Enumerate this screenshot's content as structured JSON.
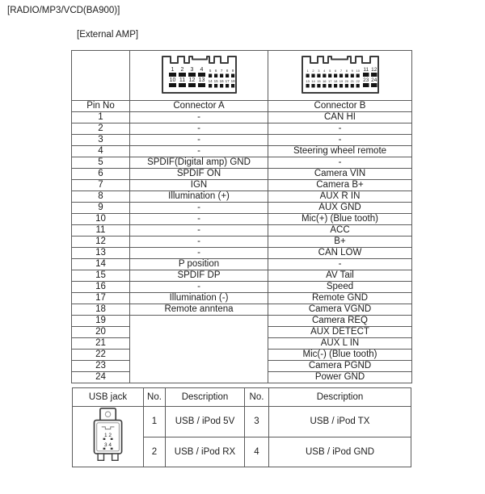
{
  "page_title": "[RADIO/MP3/VCD(BA900)]",
  "section_label": "[External AMP]",
  "colors": {
    "text": "#1c1c1c",
    "border": "#5c5c5c",
    "pin_fill": "#151515",
    "background": "#ffffff"
  },
  "connector_a": {
    "top_pins_large": [
      "1",
      "2",
      "3",
      "4"
    ],
    "top_pins_small": [
      "5",
      "6",
      "7",
      "8",
      "9"
    ],
    "bottom_pins_large": [
      "10",
      "11",
      "12",
      "13"
    ],
    "bottom_pins_small": [
      "14",
      "15",
      "16",
      "17",
      "18"
    ]
  },
  "connector_b": {
    "top_pins_small": [
      "1",
      "2",
      "3",
      "4",
      "5",
      "6",
      "7",
      "8",
      "9",
      "10"
    ],
    "top_pins_large": [
      "11",
      "12"
    ],
    "bottom_pins_small": [
      "13",
      "14",
      "15",
      "16",
      "17",
      "18",
      "19",
      "20",
      "21",
      "22"
    ],
    "bottom_pins_large": [
      "23",
      "24"
    ]
  },
  "pin_table": {
    "headers": [
      "Pin No",
      "Connector A",
      "Connector B"
    ],
    "rows": [
      {
        "pin": "1",
        "a": "-",
        "b": "CAN HI"
      },
      {
        "pin": "2",
        "a": "-",
        "b": "-"
      },
      {
        "pin": "3",
        "a": "-",
        "b": "-"
      },
      {
        "pin": "4",
        "a": "-",
        "b": "Steering wheel remote"
      },
      {
        "pin": "5",
        "a": "SPDIF(Digital amp) GND",
        "b": "-"
      },
      {
        "pin": "6",
        "a": "SPDIF ON",
        "b": "Camera VIN"
      },
      {
        "pin": "7",
        "a": "IGN",
        "b": "Camera B+"
      },
      {
        "pin": "8",
        "a": "Illumination (+)",
        "b": "AUX R IN"
      },
      {
        "pin": "9",
        "a": "-",
        "b": "AUX GND"
      },
      {
        "pin": "10",
        "a": "-",
        "b": "Mic(+) (Blue tooth)"
      },
      {
        "pin": "11",
        "a": "-",
        "b": "ACC"
      },
      {
        "pin": "12",
        "a": "-",
        "b": "B+"
      },
      {
        "pin": "13",
        "a": "-",
        "b": "CAN LOW"
      },
      {
        "pin": "14",
        "a": "P position",
        "b": "-"
      },
      {
        "pin": "15",
        "a": "SPDIF DP",
        "b": "AV Tail"
      },
      {
        "pin": "16",
        "a": "-",
        "b": "Speed"
      },
      {
        "pin": "17",
        "a": "Illumination (-)",
        "b": "Remote GND"
      },
      {
        "pin": "18",
        "a": "Remote anntena",
        "b": "Camera VGND"
      },
      {
        "pin": "19",
        "a": "",
        "a_rowspan": 6,
        "b": "Camera REQ"
      },
      {
        "pin": "20",
        "a": null,
        "b": "AUX DETECT"
      },
      {
        "pin": "21",
        "a": null,
        "b": "AUX L IN"
      },
      {
        "pin": "22",
        "a": null,
        "b": "Mic(-) (Blue tooth)"
      },
      {
        "pin": "23",
        "a": null,
        "b": "Camera PGND"
      },
      {
        "pin": "24",
        "a": null,
        "b": "Power GND"
      }
    ]
  },
  "usb_table": {
    "jack_label": "USB jack",
    "headers": [
      "No.",
      "Description",
      "No.",
      "Description"
    ],
    "jack_pin_rows": [
      "1 2",
      "3 4"
    ],
    "rows": [
      {
        "no1": "1",
        "desc1": "USB / iPod 5V",
        "no2": "3",
        "desc2": "USB / iPod TX"
      },
      {
        "no1": "2",
        "desc1": "USB / iPod RX",
        "no2": "4",
        "desc2": "USB / iPod GND"
      }
    ]
  }
}
